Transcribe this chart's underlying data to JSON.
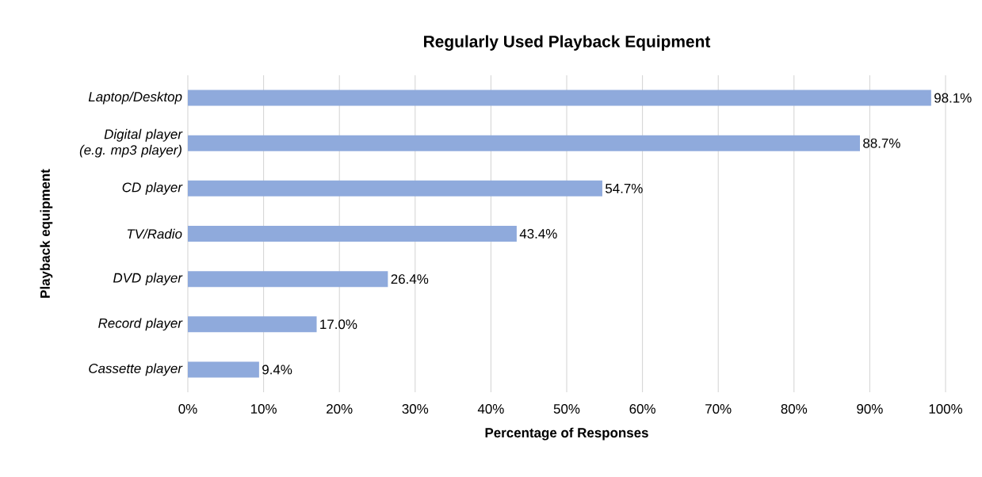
{
  "chart_data": {
    "type": "bar",
    "orientation": "horizontal",
    "title": "Regularly Used Playback Equipment",
    "xlabel": "Percentage of Responses",
    "ylabel": "Playback equipment",
    "categories": [
      "Laptop/Desktop",
      "Digital player (e.g. mp3 player)",
      "CD player",
      "TV/Radio",
      "DVD player",
      "Record player",
      "Cassette player"
    ],
    "values": [
      98.1,
      88.7,
      54.7,
      43.4,
      26.4,
      17.0,
      9.4
    ],
    "value_labels": [
      "98.1%",
      "88.7%",
      "54.7%",
      "43.4%",
      "26.4%",
      "17.0%",
      "9.4%"
    ],
    "color": "#8faadc",
    "xlim": [
      0,
      100
    ],
    "xticks": [
      {
        "value": 0,
        "label": "0%"
      },
      {
        "value": 10,
        "label": "10%"
      },
      {
        "value": 20,
        "label": "20%"
      },
      {
        "value": 30,
        "label": "30%"
      },
      {
        "value": 40,
        "label": "40%"
      },
      {
        "value": 50,
        "label": "50%"
      },
      {
        "value": 60,
        "label": "60%"
      },
      {
        "value": 70,
        "label": "70%"
      },
      {
        "value": 80,
        "label": "80%"
      },
      {
        "value": 90,
        "label": "90%"
      },
      {
        "value": 100,
        "label": "100%"
      }
    ],
    "grid": "x"
  }
}
